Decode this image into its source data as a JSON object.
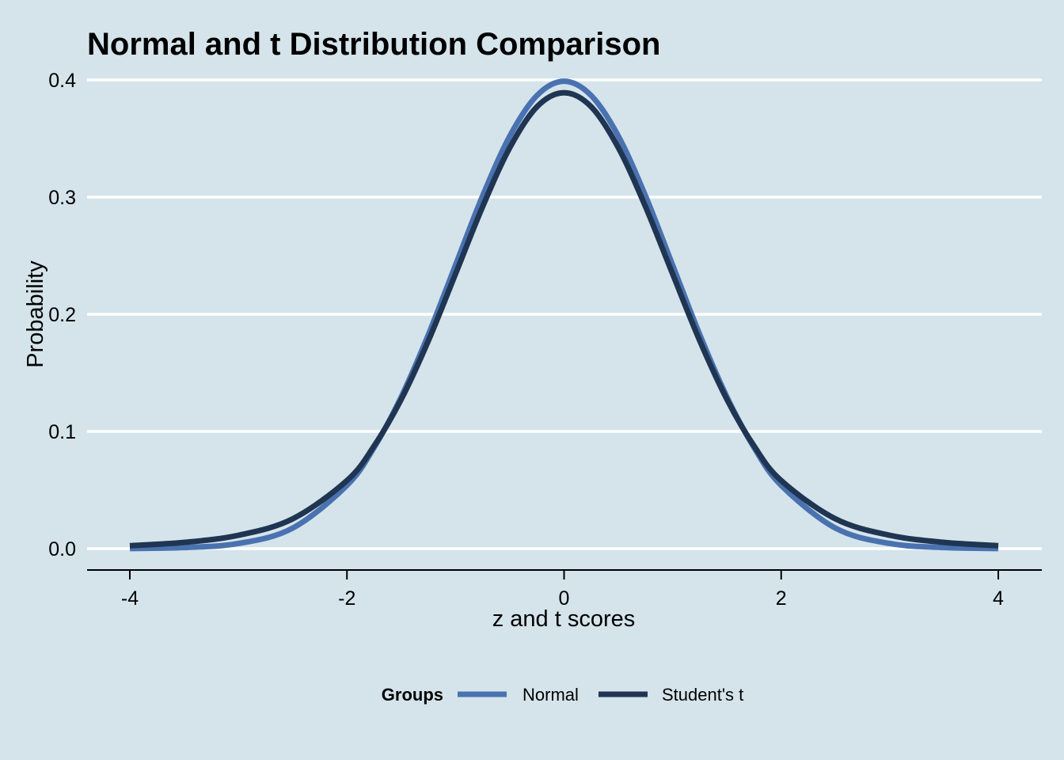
{
  "chart_data": {
    "type": "line",
    "title": "Normal and t Distribution Comparison",
    "xlabel": "z and t scores",
    "ylabel": "Probability",
    "xlim": [
      -4.2,
      4.2
    ],
    "ylim": [
      -0.018,
      0.4
    ],
    "x_ticks": [
      -4,
      -2,
      0,
      2,
      4
    ],
    "x_tick_labels": [
      "-4",
      "-2",
      "0",
      "2",
      "4"
    ],
    "y_ticks": [
      0.0,
      0.1,
      0.2,
      0.3,
      0.4
    ],
    "y_tick_labels": [
      "0.0",
      "0.1",
      "0.2",
      "0.3",
      "0.4"
    ],
    "grid": "horizontal-major",
    "legend": {
      "position": "bottom",
      "title": "Groups"
    },
    "x": [
      -4.0,
      -3.5,
      -3.0,
      -2.5,
      -2.0,
      -1.75,
      -1.5,
      -1.25,
      -1.0,
      -0.75,
      -0.5,
      -0.25,
      0.0,
      0.25,
      0.5,
      0.75,
      1.0,
      1.25,
      1.5,
      1.75,
      2.0,
      2.5,
      3.0,
      3.5,
      4.0
    ],
    "series": [
      {
        "name": "Normal",
        "color": "#4a72b0",
        "values": [
          0.0001,
          0.0009,
          0.0044,
          0.0175,
          0.054,
          0.0863,
          0.1295,
          0.1826,
          0.242,
          0.3011,
          0.3521,
          0.3867,
          0.3989,
          0.3867,
          0.3521,
          0.3011,
          0.242,
          0.1826,
          0.1295,
          0.0863,
          0.054,
          0.0175,
          0.0044,
          0.0009,
          0.0001
        ]
      },
      {
        "name": "Student's t",
        "color": "#1f3552",
        "values": [
          0.0025,
          0.0053,
          0.0114,
          0.0254,
          0.0581,
          0.0876,
          0.1274,
          0.1774,
          0.2344,
          0.2919,
          0.3422,
          0.3771,
          0.3891,
          0.3771,
          0.3422,
          0.2919,
          0.2344,
          0.1774,
          0.1274,
          0.0876,
          0.0581,
          0.0254,
          0.0114,
          0.0053,
          0.0025
        ]
      }
    ]
  }
}
